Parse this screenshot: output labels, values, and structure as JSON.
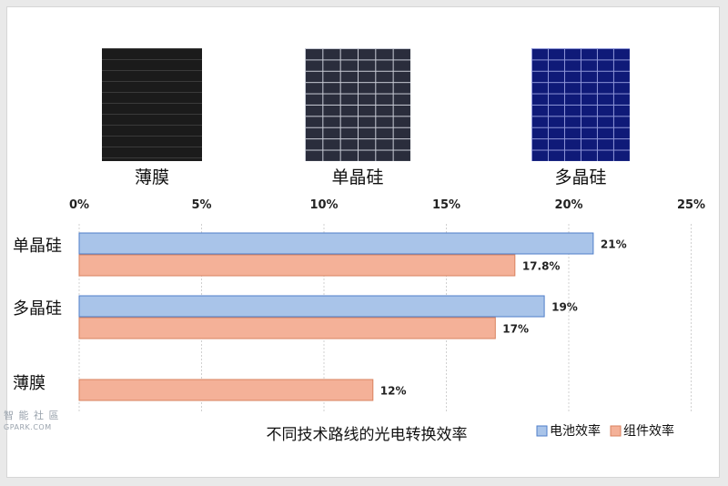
{
  "panels": [
    {
      "label": "薄膜",
      "icon": "thin-film-panel",
      "color": "#1b1b1b"
    },
    {
      "label": "单晶硅",
      "icon": "mono-crystalline-panel",
      "color": "#2a2d3c"
    },
    {
      "label": "多晶硅",
      "icon": "poly-crystalline-panel",
      "color": "#0f1a78"
    }
  ],
  "watermark": {
    "line1": "智 能 社 區",
    "line2": "GPARK.COM"
  },
  "chart_data": {
    "type": "bar",
    "orientation": "horizontal",
    "title": "不同技术路线的光电转换效率",
    "categories": [
      "单晶硅",
      "多晶硅",
      "薄膜"
    ],
    "xlim": [
      0,
      25
    ],
    "x_ticks": [
      "0%",
      "5%",
      "10%",
      "15%",
      "20%",
      "25%"
    ],
    "grid": true,
    "legend_position": "bottom-right",
    "series": [
      {
        "name": "电池效率",
        "color": "#a9c4e9",
        "values": [
          21,
          19,
          null
        ],
        "labels": [
          "21%",
          "19%",
          ""
        ]
      },
      {
        "name": "组件效率",
        "color": "#f4b198",
        "values": [
          17.8,
          17,
          12
        ],
        "labels": [
          "17.8%",
          "17%",
          "12%"
        ]
      }
    ]
  }
}
